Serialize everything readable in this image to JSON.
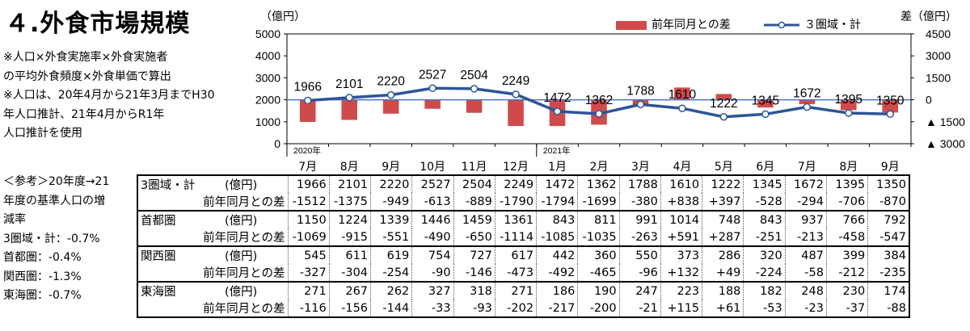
{
  "title": "４.外食市場規模",
  "notes": [
    "※人口×外食実施率×外食実施者",
    "の平均外食頻度×外食単価で算出",
    "※人口は、20年4月から21年3月までH30",
    "年人口推計、21年4月からR1年",
    "人口推計を使用"
  ],
  "reference": [
    "＜参考＞20年度→21",
    "年度の基準人口の増",
    "減率",
    "3圏域・計：‐0.7%",
    "首都圏：‐0.4%",
    "関西圏：‐1.3%",
    "東海圏：‐0.7%"
  ],
  "colors": {
    "bar": "#cf4b4b",
    "line": "#2e5597",
    "zero_line": "#4a74c4"
  },
  "chart_data": {
    "type": "bar+line",
    "categories": [
      "7月",
      "8月",
      "9月",
      "10月",
      "11月",
      "12月",
      "1月",
      "2月",
      "3月",
      "4月",
      "5月",
      "6月",
      "7月",
      "8月",
      "9月"
    ],
    "year_labels": [
      {
        "label": "2020年",
        "index": 0
      },
      {
        "label": "2021年",
        "index": 6
      }
    ],
    "series": [
      {
        "name": "前年同月との差",
        "type": "bar",
        "axis": "right",
        "values": [
          -1512,
          -1375,
          -949,
          -613,
          -889,
          -1790,
          -1794,
          -1699,
          -380,
          838,
          397,
          -528,
          -294,
          -706,
          -870
        ]
      },
      {
        "name": "３圏域・計",
        "type": "line",
        "axis": "left",
        "values": [
          1966,
          2101,
          2220,
          2527,
          2504,
          2249,
          1472,
          1362,
          1788,
          1610,
          1222,
          1345,
          1672,
          1395,
          1350
        ]
      }
    ],
    "y_left": {
      "label": "（億円）",
      "ylim": [
        0,
        5000
      ],
      "ticks": [
        "0",
        "1000",
        "2000",
        "3000",
        "4000",
        "5000"
      ]
    },
    "y_right": {
      "label": "差（億円）",
      "ylim": [
        -3000,
        4500
      ],
      "tick_values": [
        4500,
        3000,
        1500,
        0,
        -1500,
        -3000
      ],
      "tick_labels": [
        "4500",
        "3000",
        "1500",
        "0",
        "▲ 1500",
        "▲ 3000"
      ]
    }
  },
  "table": {
    "unit": "(億円)",
    "diff_label": "前年同月との差",
    "groups": [
      {
        "name": "3圏域・計",
        "values": [
          "1966",
          "2101",
          "2220",
          "2527",
          "2504",
          "2249",
          "1472",
          "1362",
          "1788",
          "1610",
          "1222",
          "1345",
          "1672",
          "1395",
          "1350"
        ],
        "diffs": [
          "-1512",
          "-1375",
          "-949",
          "-613",
          "-889",
          "-1790",
          "-1794",
          "-1699",
          "-380",
          "+838",
          "+397",
          "-528",
          "-294",
          "-706",
          "-870"
        ]
      },
      {
        "name": "首都圏",
        "values": [
          "1150",
          "1224",
          "1339",
          "1446",
          "1459",
          "1361",
          "843",
          "811",
          "991",
          "1014",
          "748",
          "843",
          "937",
          "766",
          "792"
        ],
        "diffs": [
          "-1069",
          "-915",
          "-551",
          "-490",
          "-650",
          "-1114",
          "-1085",
          "-1035",
          "-263",
          "+591",
          "+287",
          "-251",
          "-213",
          "-458",
          "-547"
        ]
      },
      {
        "name": "関西圏",
        "values": [
          "545",
          "611",
          "619",
          "754",
          "727",
          "617",
          "442",
          "360",
          "550",
          "373",
          "286",
          "320",
          "487",
          "399",
          "384"
        ],
        "diffs": [
          "-327",
          "-304",
          "-254",
          "-90",
          "-146",
          "-473",
          "-492",
          "-465",
          "-96",
          "+132",
          "+49",
          "-224",
          "-58",
          "-212",
          "-235"
        ]
      },
      {
        "name": "東海圏",
        "values": [
          "271",
          "267",
          "262",
          "327",
          "318",
          "271",
          "186",
          "190",
          "247",
          "223",
          "188",
          "182",
          "248",
          "230",
          "174"
        ],
        "diffs": [
          "-116",
          "-156",
          "-144",
          "-33",
          "-93",
          "-202",
          "-217",
          "-200",
          "-21",
          "+115",
          "+61",
          "-53",
          "-23",
          "-37",
          "-88"
        ]
      }
    ]
  }
}
